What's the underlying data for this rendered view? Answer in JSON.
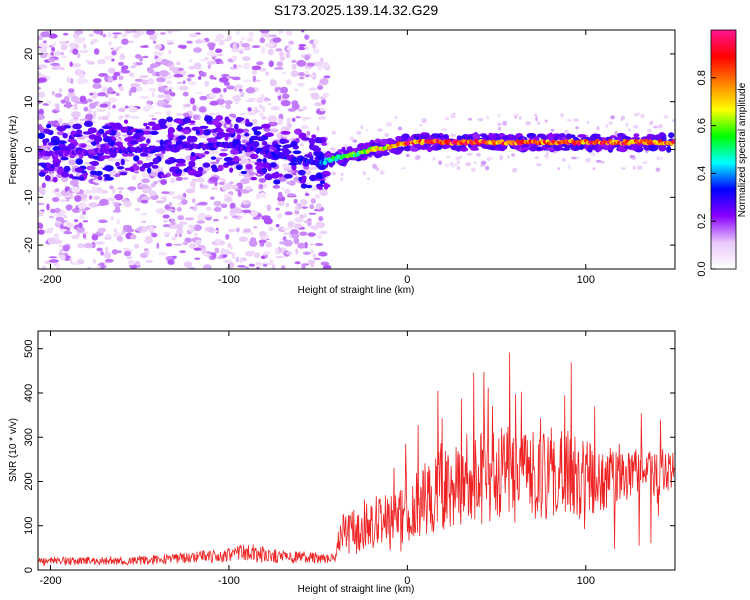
{
  "figure_title": "S173.2025.139.14.32.G29",
  "chart_data": [
    {
      "type": "heatmap",
      "xlabel": "Height of straight line (km)",
      "ylabel": "Frequency (Hz)",
      "xlim": [
        -207,
        150
      ],
      "ylim": [
        -25,
        25
      ],
      "xticks": [
        -200,
        -100,
        0,
        100
      ],
      "xtick_labels": [
        "-200",
        "-100",
        "0",
        "100"
      ],
      "yticks": [
        -20,
        -10,
        0,
        10,
        20
      ],
      "ytick_labels": [
        "-20",
        "-10",
        "0",
        "10",
        "20"
      ],
      "colorbar": {
        "label": "Normalized spectral amplitude",
        "range": [
          0,
          1
        ],
        "ticks": [
          0.0,
          0.2,
          0.4,
          0.6,
          0.8
        ],
        "tick_labels": [
          "0.0",
          "0.2",
          "0.4",
          "0.6",
          "0.8"
        ],
        "colors": [
          "#ffffff",
          "#e8c8f8",
          "#8800ff",
          "#0000ff",
          "#00ffff",
          "#00ff00",
          "#ffff00",
          "#ff8000",
          "#ff0000",
          "#ff1493"
        ]
      },
      "ridge": {
        "description_free": true,
        "x": [
          -207,
          -150,
          -100,
          -50,
          -42,
          -30,
          -20,
          -10,
          0,
          20,
          50,
          80,
          100,
          150
        ],
        "freq": [
          -1,
          0,
          1,
          -3,
          -2,
          -1,
          0,
          0.5,
          1.5,
          1.5,
          1.5,
          1.5,
          1.5,
          1.5
        ],
        "amplitude": [
          0.25,
          0.3,
          0.3,
          0.35,
          0.55,
          0.6,
          0.7,
          0.8,
          0.95,
          0.95,
          0.95,
          0.95,
          0.95,
          0.95
        ]
      }
    },
    {
      "type": "line",
      "xlabel": "Height of straight line (km)",
      "ylabel": "SNR (10 * v/v)",
      "xlim": [
        -207,
        150
      ],
      "ylim": [
        0,
        540
      ],
      "xticks": [
        -200,
        -100,
        0,
        100
      ],
      "xtick_labels": [
        "-200",
        "-100",
        "0",
        "100"
      ],
      "yticks": [
        0,
        100,
        200,
        300,
        400,
        500
      ],
      "ytick_labels": [
        "0",
        "100",
        "200",
        "300",
        "400",
        "500"
      ],
      "series": [
        {
          "color": "#ee2222",
          "x": [
            -207,
            -180,
            -150,
            -120,
            -100,
            -90,
            -70,
            -50,
            -40,
            -38,
            -30,
            -20,
            -10,
            0,
            10,
            20,
            30,
            40,
            50,
            60,
            70,
            80,
            90,
            100,
            110,
            120,
            130,
            140,
            150
          ],
          "y": [
            20,
            20,
            22,
            28,
            35,
            40,
            30,
            28,
            25,
            80,
            85,
            110,
            110,
            140,
            160,
            180,
            200,
            210,
            215,
            215,
            215,
            220,
            215,
            200,
            210,
            215,
            220,
            220,
            225
          ],
          "noise_amp": [
            10,
            10,
            10,
            12,
            18,
            22,
            14,
            12,
            10,
            45,
            55,
            65,
            70,
            75,
            85,
            95,
            105,
            110,
            110,
            110,
            100,
            100,
            100,
            90,
            75,
            60,
            55,
            55,
            50
          ]
        }
      ]
    }
  ]
}
